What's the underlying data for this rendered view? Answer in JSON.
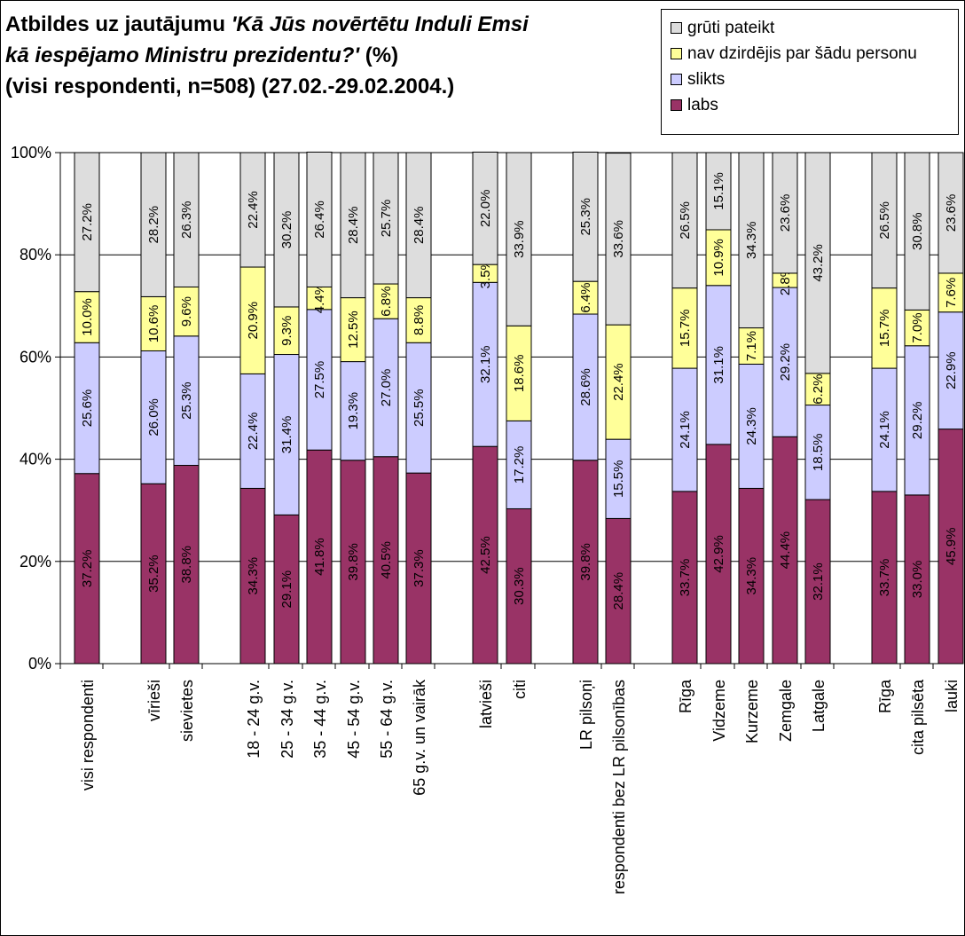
{
  "title": {
    "line1_prefix": "Atbildes uz jautājumu ",
    "line1_italic": "'Kā Jūs novērtētu Induli Emsi",
    "line2_italic": "kā iespējamo Ministru prezidentu?'",
    "line2_suffix": " (%)",
    "line3": "(visi respondenti, n=508) (27.02.-29.02.2004.)"
  },
  "legend": [
    {
      "label": "grūti pateikt",
      "color": "#DDDDDD"
    },
    {
      "label": "nav dzirdējis par šādu personu",
      "color": "#FFFF99"
    },
    {
      "label": "slikts",
      "color": "#CCCCFF"
    },
    {
      "label": "labs",
      "color": "#993366"
    }
  ],
  "chart_data": {
    "type": "bar",
    "stacked": true,
    "ylim": [
      0,
      100
    ],
    "yticks": [
      "0%",
      "20%",
      "40%",
      "60%",
      "80%",
      "100%"
    ],
    "grid": true,
    "legend_position": "top-right",
    "categories": [
      "visi respondenti",
      "vīrieši",
      "sievietes",
      "18 - 24 g.v.",
      "25 - 34 g.v.",
      "35 - 44 g.v.",
      "45 - 54 g.v.",
      "55 - 64 g.v.",
      "65 g.v. un vairāk",
      "latvieši",
      "citi",
      "LR pilsoņi",
      "respondenti bez LR pilsonības",
      "Rīga",
      "Vidzeme",
      "Kurzeme",
      "Zemgale",
      "Latgale",
      "Rīga",
      "cita pilsēta",
      "lauki"
    ],
    "series": [
      {
        "name": "labs",
        "color": "#993366",
        "values": [
          37.2,
          35.2,
          38.8,
          34.3,
          29.1,
          41.8,
          39.8,
          40.5,
          37.3,
          42.5,
          30.3,
          39.8,
          28.4,
          33.7,
          42.9,
          34.3,
          44.4,
          32.1,
          33.7,
          33.0,
          45.9
        ]
      },
      {
        "name": "slikts",
        "color": "#CCCCFF",
        "values": [
          25.6,
          26.0,
          25.3,
          22.4,
          31.4,
          27.5,
          19.3,
          27.0,
          25.5,
          32.1,
          17.2,
          28.6,
          15.5,
          24.1,
          31.1,
          24.3,
          29.2,
          18.5,
          24.1,
          29.2,
          22.9
        ]
      },
      {
        "name": "nav dzirdējis par šādu personu",
        "color": "#FFFF99",
        "values": [
          10.0,
          10.6,
          9.6,
          20.9,
          9.3,
          4.4,
          12.5,
          6.8,
          8.8,
          3.5,
          18.6,
          6.4,
          22.4,
          15.7,
          10.9,
          7.1,
          2.8,
          6.2,
          15.7,
          7.0,
          7.6
        ]
      },
      {
        "name": "grūti pateikt",
        "color": "#DDDDDD",
        "values": [
          27.2,
          28.2,
          26.3,
          22.4,
          30.2,
          26.4,
          28.4,
          25.7,
          28.4,
          22.0,
          33.9,
          25.3,
          33.6,
          26.5,
          15.1,
          34.3,
          23.6,
          43.2,
          26.5,
          30.8,
          23.6
        ]
      }
    ],
    "data_labels": [
      [
        "37.2%",
        "35.2%",
        "38.8%",
        "34.3%",
        "29.1%",
        "41.8%",
        "39.8%",
        "40.5%",
        "37.3%",
        "42.5%",
        "30.3%",
        "39.8%",
        "28.4%",
        "33.7%",
        "42.9%",
        "34.3%",
        "44.4%",
        "32.1%",
        "33.7%",
        "33.0%",
        "45.9%"
      ],
      [
        "25.6%",
        "26.0%",
        "25.3%",
        "22.4%",
        "31.4%",
        "27.5%",
        "19.3%",
        "27.0%",
        "25.5%",
        "32.1%",
        "17.2%",
        "28.6%",
        "15.5%",
        "24.1%",
        "31.1%",
        "24.3%",
        "29.2%",
        "18.5%",
        "24.1%",
        "29.2%",
        "22.9%"
      ],
      [
        "10.0%",
        "10.6%",
        "9.6%",
        "20.9%",
        "9.3%",
        "4.4%",
        "12.5%",
        "6.8%",
        "8.8%",
        "3.5%",
        "18.6%",
        "6.4%",
        "22.4%",
        "15.7%",
        "10.9%",
        "7.1%",
        "2.8%",
        "6.2%",
        "15.7%",
        "7.0%",
        "7.6%"
      ],
      [
        "27.2%",
        "28.2%",
        "26.3%",
        "22.4%",
        "30.2%",
        "26.4%",
        "28.4%",
        "25.7%",
        "28.4%",
        "22.0%",
        "33.9%",
        "25.3%",
        "33.6%",
        "26.5%",
        "15.1%",
        "34.3%",
        "23.6%",
        "43.2%",
        "26.5%",
        "30.8%",
        "23.6%"
      ]
    ]
  }
}
